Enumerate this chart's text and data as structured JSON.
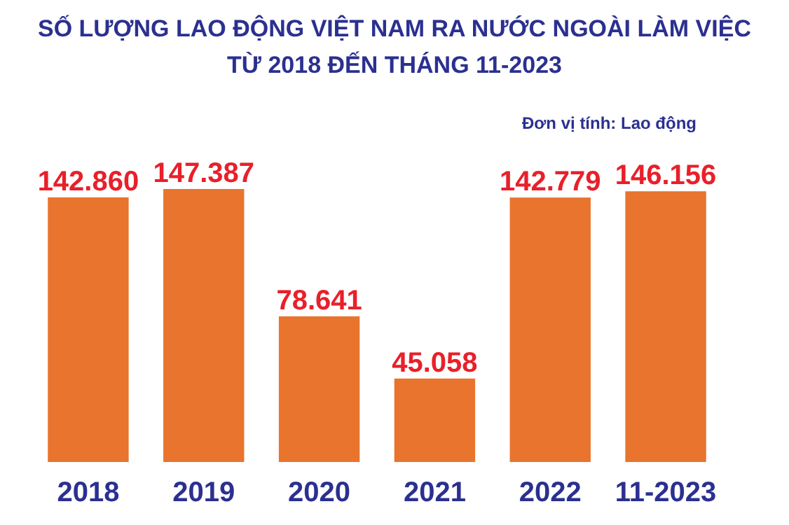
{
  "chart_data": {
    "type": "bar",
    "title": "SỐ LƯỢNG LAO ĐỘNG VIỆT NAM RA NƯỚC NGOÀI LÀM VIỆC\nTỪ 2018 ĐẾN THÁNG 11-2023",
    "annotations": [
      "Đơn vị tính: Lao động"
    ],
    "categories": [
      "2018",
      "2019",
      "2020",
      "2021",
      "2022",
      "11-2023"
    ],
    "values": [
      142860,
      147387,
      78641,
      45058,
      142779,
      146156
    ],
    "value_labels": [
      "142.860",
      "147.387",
      "78.641",
      "45.058",
      "142.779",
      "146.156"
    ],
    "color": "#e8742d"
  }
}
